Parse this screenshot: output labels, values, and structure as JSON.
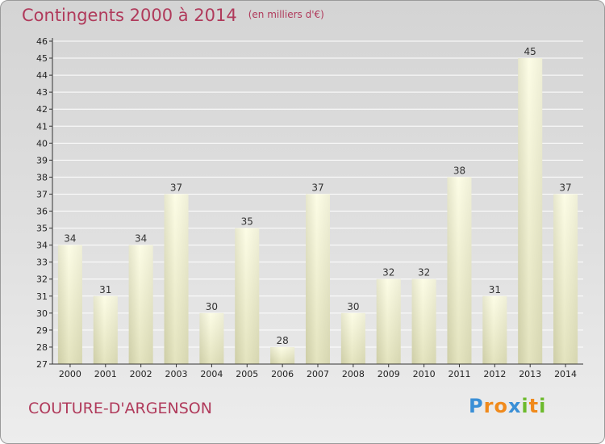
{
  "chart_data": {
    "type": "bar",
    "title": "Contingents 2000 à 2014",
    "subtitle": "(en milliers d'€)",
    "categories": [
      "2000",
      "2001",
      "2002",
      "2003",
      "2004",
      "2005",
      "2006",
      "2007",
      "2008",
      "2009",
      "2010",
      "2011",
      "2012",
      "2013",
      "2014"
    ],
    "values": [
      34,
      31,
      34,
      37,
      30,
      35,
      28,
      37,
      30,
      32,
      32,
      38,
      31,
      45,
      37
    ],
    "xlabel": "",
    "ylabel": "",
    "ylim": [
      27,
      46
    ],
    "yticks": [
      27,
      28,
      29,
      30,
      31,
      32,
      33,
      34,
      35,
      36,
      37,
      38,
      39,
      40,
      41,
      42,
      43,
      44,
      45,
      46
    ],
    "grid": "horizontal",
    "bar_color_light": "#ffffd8",
    "bar_color_dark": "#d8d8b0"
  },
  "footer": {
    "commune": "COUTURE-D'ARGENSON"
  },
  "logo": {
    "letters": [
      "P",
      "r",
      "o",
      "x",
      "i",
      "t",
      "i"
    ],
    "colors": [
      "#3a8fd6",
      "#f08a1c",
      "#f08a1c",
      "#3a8fd6",
      "#6cba2c",
      "#f08a1c",
      "#6cba2c"
    ]
  },
  "colors": {
    "title": "#b03a5b",
    "grid": "#ffffff",
    "axis": "#333333"
  }
}
